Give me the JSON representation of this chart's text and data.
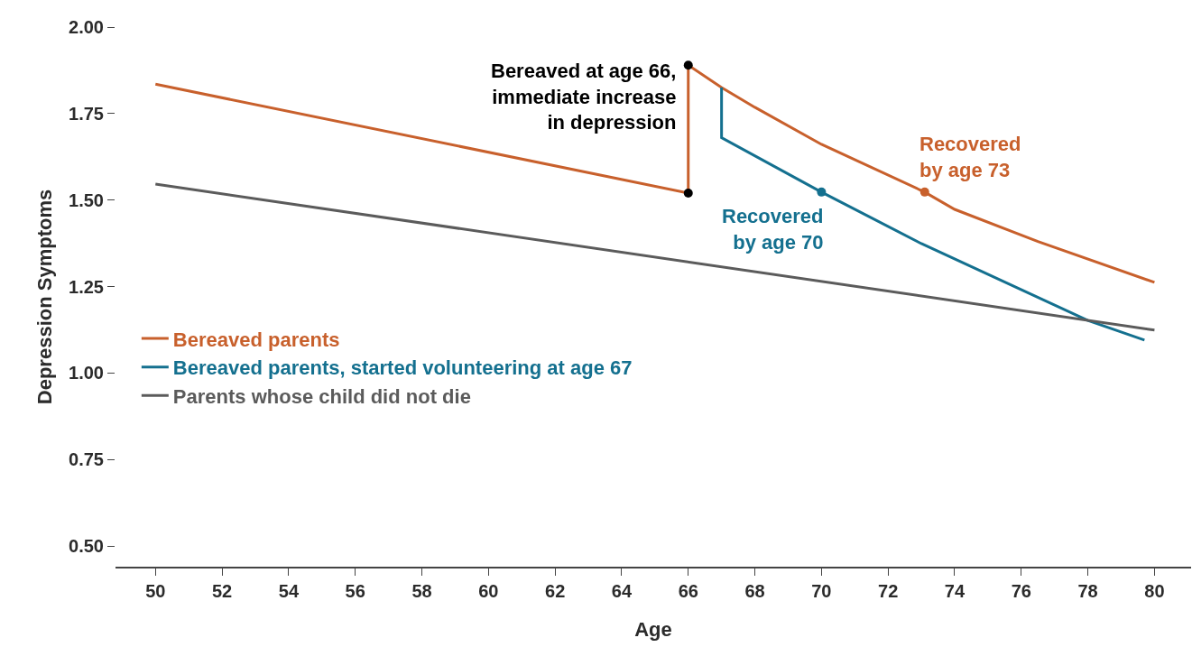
{
  "chart_data": {
    "type": "line",
    "xlabel": "Age",
    "ylabel": "Depression Symptoms",
    "xlim": [
      48.8,
      81.1
    ],
    "xticks": [
      50,
      52,
      54,
      56,
      58,
      60,
      62,
      64,
      66,
      68,
      70,
      72,
      74,
      76,
      78,
      80
    ],
    "ylim": [
      0.44,
      2.0
    ],
    "yticks": [
      {
        "value": 0.5,
        "label": "0.50"
      },
      {
        "value": 0.75,
        "label": "0.75"
      },
      {
        "value": 1,
        "label": "1.00"
      },
      {
        "value": 1.25,
        "label": "1.25"
      },
      {
        "value": 1.5,
        "label": "1.50"
      },
      {
        "value": 1.75,
        "label": "1.75"
      },
      {
        "value": 2,
        "label": "2.00"
      }
    ],
    "grid": false,
    "legend": "left",
    "marker": "none",
    "line_style": "solid",
    "series": [
      {
        "name": "Bereaved parents",
        "color": "#c8602c",
        "x": [
          50,
          66,
          66,
          67,
          68,
          70,
          73.1,
          74,
          76.5,
          80
        ],
        "values": [
          1.835,
          1.52,
          1.89,
          1.825,
          1.768,
          1.661,
          1.523,
          1.473,
          1.38,
          1.262
        ]
      },
      {
        "name": "Bereaved parents, started volunteering at age 67",
        "color": "#14708f",
        "x": [
          67,
          67,
          70,
          73,
          78,
          79.7
        ],
        "values": [
          1.825,
          1.68,
          1.523,
          1.374,
          1.152,
          1.095
        ]
      },
      {
        "name": "Parents whose child did not die",
        "color": "#5b5b5b",
        "x": [
          50,
          80
        ],
        "values": [
          1.546,
          1.124
        ]
      },
      {
        "type": "scatter",
        "marker": "circle",
        "color": "#000000",
        "x": [
          66,
          66
        ],
        "values": [
          1.52,
          1.89
        ]
      },
      {
        "type": "scatter",
        "marker": "circle",
        "color": "#14708f",
        "x": [
          70
        ],
        "values": [
          1.523
        ]
      },
      {
        "type": "scatter",
        "marker": "circle",
        "color": "#c8602c",
        "x": [
          73.1
        ],
        "values": [
          1.523
        ]
      }
    ],
    "annotations": [
      {
        "text": "Bereaved at age 66,\nimmediate increase\nin depression",
        "x": 66,
        "y": 1.89
      },
      {
        "text": "Recovered\nby age 70",
        "x": 70,
        "y": 1.523
      },
      {
        "text": "Recovered\nby age 73",
        "x": 73.1,
        "y": 1.523
      }
    ]
  }
}
